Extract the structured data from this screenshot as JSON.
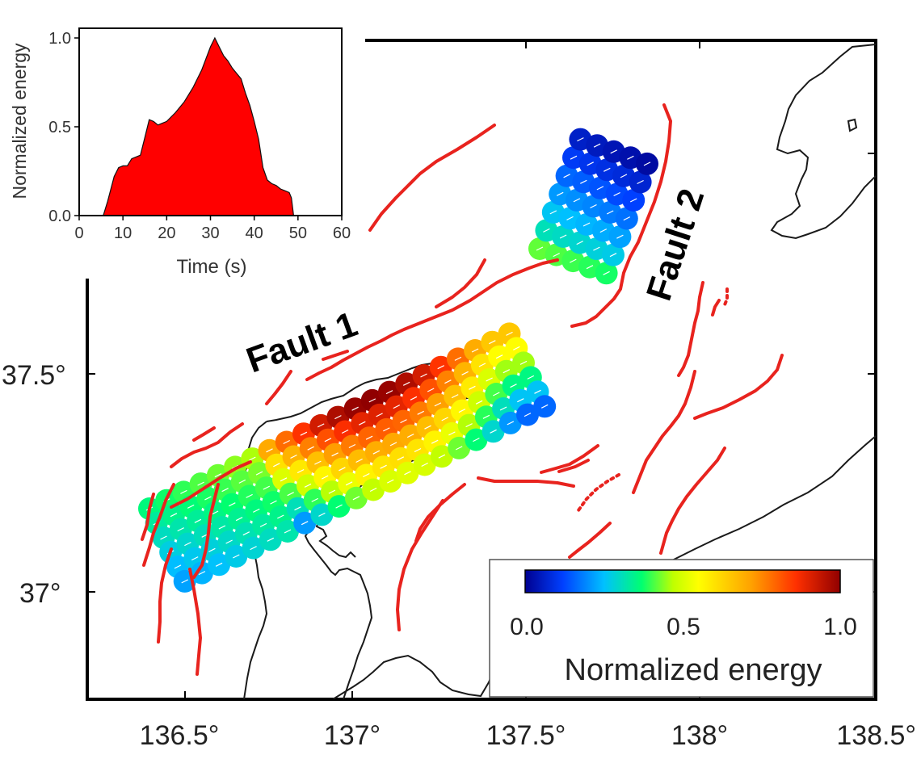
{
  "map": {
    "lon_ticks": [
      "136.5°",
      "137°",
      "137.5°",
      "138°",
      "138.5°"
    ],
    "lat_ticks": [
      "37.5°",
      "37°"
    ],
    "fault_labels": [
      "Fault 1",
      "Fault 2"
    ],
    "colorbar": {
      "title": "Normalized energy",
      "ticks": [
        "0.0",
        "0.5",
        "1.0"
      ]
    },
    "colors": {
      "fault": "#e8231e",
      "coast": "#1a1a1a",
      "colormap": [
        "#000090",
        "#0040ff",
        "#00c0ff",
        "#00ff70",
        "#c0ff00",
        "#ffff00",
        "#ffa000",
        "#ff3000",
        "#900000"
      ]
    }
  },
  "inset": {
    "ylabel": "Normalized energy",
    "xlabel": "Time (s)",
    "x_ticks": [
      "0",
      "10",
      "20",
      "30",
      "40",
      "50",
      "60"
    ],
    "y_ticks": [
      "0.0",
      "0.5",
      "1.0"
    ],
    "fill_color": "#ff0000"
  },
  "chart_data": {
    "type": "area",
    "title": "",
    "xlabel": "Time (s)",
    "ylabel": "Normalized energy",
    "xlim": [
      0,
      60
    ],
    "ylim": [
      0,
      1.0
    ],
    "x": [
      0,
      5.5,
      6.5,
      8,
      9,
      10,
      11,
      12,
      14,
      15,
      16,
      17,
      18,
      19,
      20,
      22,
      24,
      26,
      28,
      30,
      31,
      32,
      33,
      34,
      35,
      36,
      37,
      38,
      39,
      40,
      41,
      42,
      43,
      44,
      45,
      46,
      47,
      48,
      48.5,
      49,
      60
    ],
    "series": [
      {
        "values": [
          0,
          0,
          0.08,
          0.22,
          0.27,
          0.28,
          0.28,
          0.32,
          0.34,
          0.44,
          0.54,
          0.53,
          0.51,
          0.52,
          0.53,
          0.58,
          0.64,
          0.72,
          0.82,
          0.95,
          1.0,
          0.95,
          0.9,
          0.87,
          0.83,
          0.8,
          0.77,
          0.69,
          0.62,
          0.53,
          0.43,
          0.27,
          0.2,
          0.18,
          0.17,
          0.15,
          0.14,
          0.13,
          0.1,
          0,
          0
        ]
      }
    ]
  }
}
